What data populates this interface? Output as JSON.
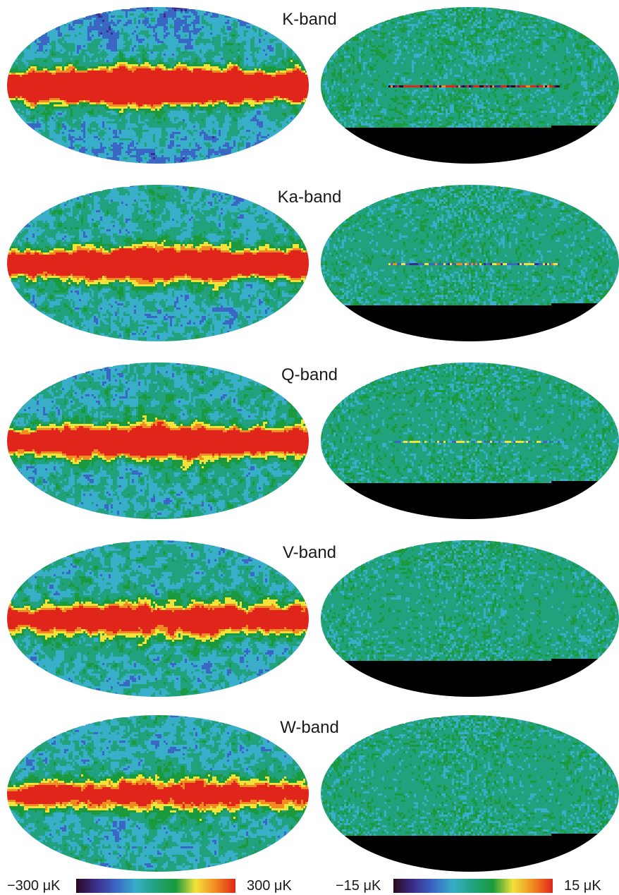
{
  "panels": [
    {
      "band": "K-band"
    },
    {
      "band": "Ka-band"
    },
    {
      "band": "Q-band"
    },
    {
      "band": "V-band"
    },
    {
      "band": "W-band"
    }
  ],
  "colorbar_left": {
    "min_label": "−300 μK",
    "max_label": "300 μK"
  },
  "colorbar_right": {
    "min_label": "−15 μK",
    "max_label": "15 μK"
  },
  "colors": {
    "dark_purple": "#2a0a1e",
    "indigo": "#3c2d8c",
    "blue": "#3b67c4",
    "cyan": "#38aec8",
    "teal": "#21a27c",
    "green": "#1a9a3c",
    "yellow": "#f2e23a",
    "orange": "#f08a22",
    "red": "#e0261a"
  }
}
